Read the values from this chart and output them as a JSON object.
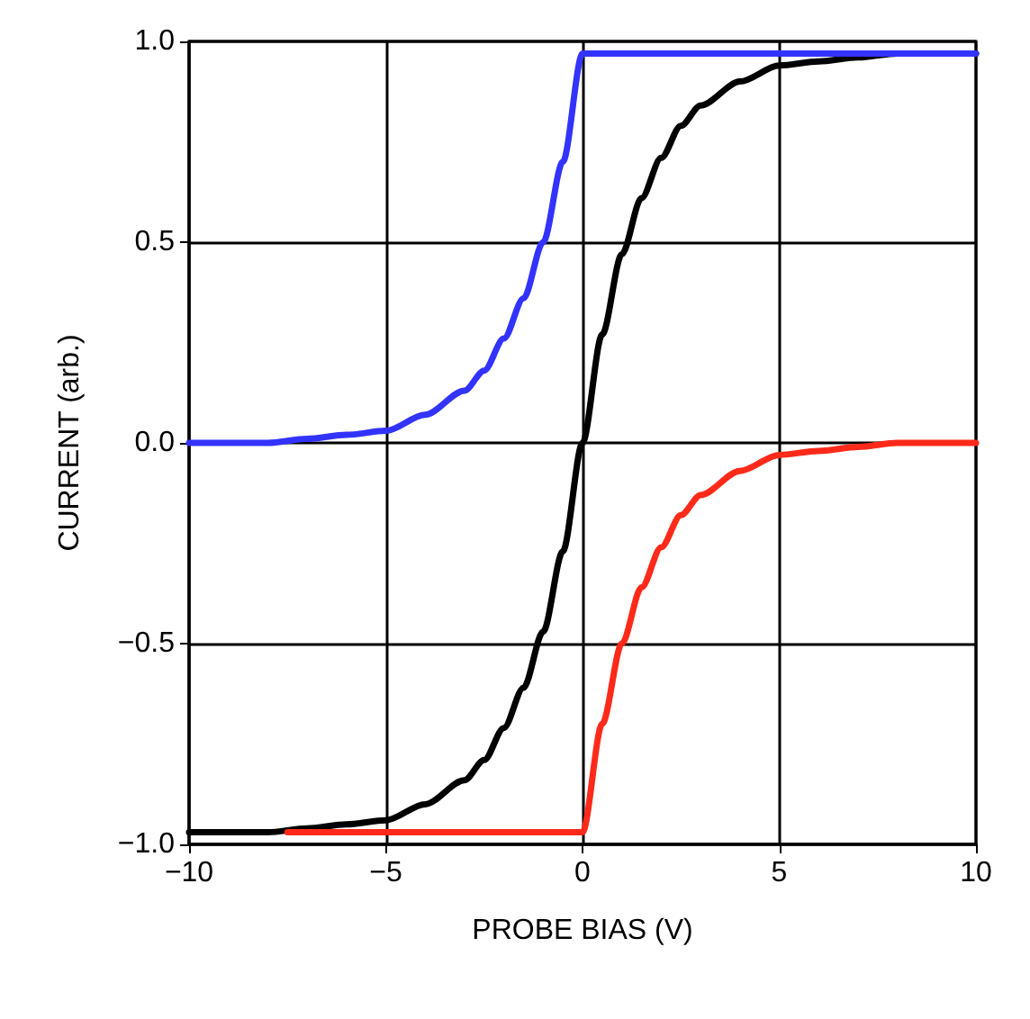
{
  "chart_data": {
    "type": "line",
    "xlabel": "PROBE BIAS (V)",
    "ylabel": "CURRENT (arb.)",
    "xlim": [
      -10,
      10
    ],
    "ylim": [
      -1,
      1
    ],
    "xticks": [
      {
        "value": -10,
        "label": "−10"
      },
      {
        "value": -5,
        "label": "−5"
      },
      0,
      5,
      10
    ],
    "yticks": [
      {
        "value": -1,
        "label": "−1.0"
      },
      {
        "value": -0.5,
        "label": "−0.5"
      },
      {
        "value": 0,
        "label": "0.0"
      },
      {
        "value": 0.5,
        "label": "0.5"
      },
      {
        "value": 1,
        "label": "1.0"
      }
    ],
    "grid": true,
    "marker": "none",
    "line_style": "solid",
    "series": [
      {
        "color": "#000000",
        "x": [
          -10,
          -8,
          -7,
          -6,
          -5,
          -4,
          -3,
          -2.5,
          -2,
          -1.5,
          -1,
          -0.5,
          0,
          0.5,
          1,
          1.5,
          2,
          2.5,
          3,
          4,
          5,
          6,
          7,
          8,
          10
        ],
        "values": [
          -0.97,
          -0.97,
          -0.96,
          -0.95,
          -0.94,
          -0.9,
          -0.84,
          -0.79,
          -0.71,
          -0.61,
          -0.47,
          -0.27,
          0,
          0.27,
          0.47,
          0.61,
          0.71,
          0.79,
          0.84,
          0.9,
          0.94,
          0.95,
          0.96,
          0.97,
          0.97
        ]
      },
      {
        "color": "#3333ff",
        "x": [
          -10,
          -8,
          -7,
          -6,
          -5,
          -4,
          -3,
          -2.5,
          -2,
          -1.5,
          -1,
          -0.5,
          0,
          10
        ],
        "values": [
          0,
          0,
          0.01,
          0.02,
          0.03,
          0.07,
          0.13,
          0.18,
          0.26,
          0.36,
          0.5,
          0.7,
          0.97,
          0.97
        ]
      },
      {
        "color": "#ff2a1a",
        "x": [
          -7.5,
          0,
          0.5,
          1,
          1.5,
          2,
          2.5,
          3,
          4,
          5,
          6,
          7,
          8,
          10
        ],
        "values": [
          -0.97,
          -0.97,
          -0.7,
          -0.5,
          -0.36,
          -0.26,
          -0.18,
          -0.13,
          -0.07,
          -0.03,
          -0.02,
          -0.01,
          0,
          0
        ]
      }
    ]
  }
}
